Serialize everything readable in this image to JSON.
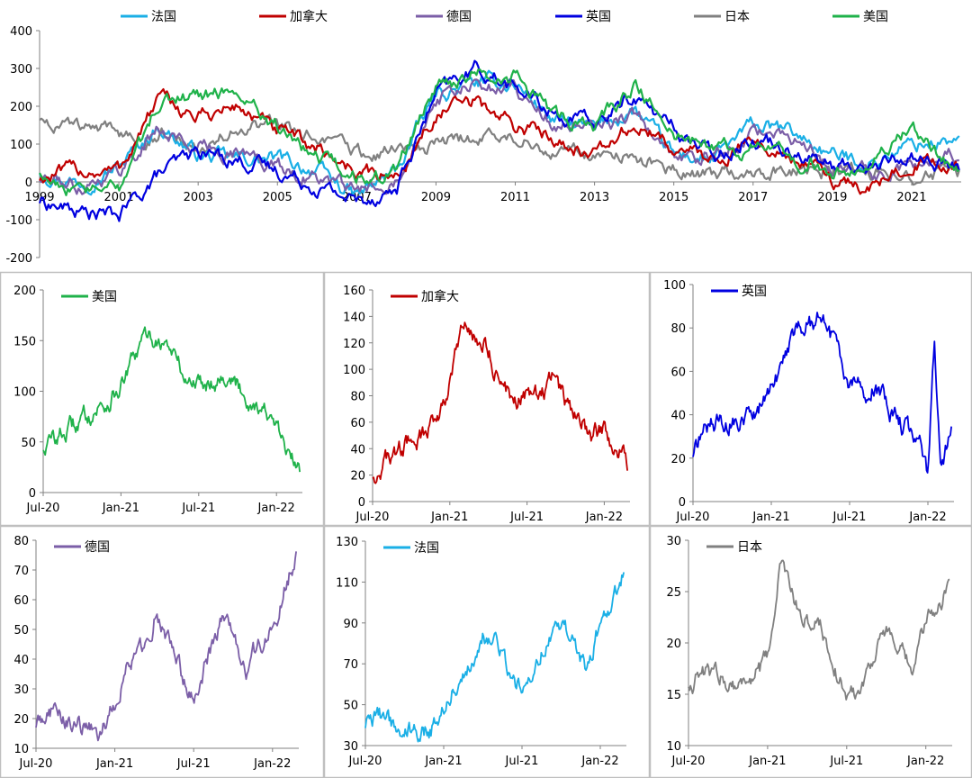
{
  "chart_data": [
    {
      "id": "main",
      "type": "line",
      "title": "",
      "xlabel": "",
      "ylabel": "",
      "xlim": [
        1999,
        2022.25
      ],
      "ylim": [
        -200,
        400
      ],
      "yticks": [
        -200,
        -100,
        0,
        100,
        200,
        300,
        400
      ],
      "xticks": [
        {
          "x": 1999,
          "label": "1999"
        },
        {
          "x": 2001,
          "label": "2001"
        },
        {
          "x": 2003,
          "label": "2003"
        },
        {
          "x": 2005,
          "label": "2005"
        },
        {
          "x": 2007,
          "label": "2007"
        },
        {
          "x": 2009,
          "label": "2009"
        },
        {
          "x": 2011,
          "label": "2011"
        },
        {
          "x": 2013,
          "label": "2013"
        },
        {
          "x": 2015,
          "label": "2015"
        },
        {
          "x": 2017,
          "label": "2017"
        },
        {
          "x": 2019,
          "label": "2019"
        },
        {
          "x": 2021,
          "label": "2021"
        }
      ],
      "legend": "top",
      "series": [
        {
          "name": "法国",
          "color": "#1aafe6",
          "x": [
            1999,
            2000,
            2001,
            2002,
            2003,
            2004,
            2005,
            2006,
            2007,
            2008,
            2009,
            2010,
            2011,
            2012,
            2013,
            2014,
            2015,
            2016,
            2017,
            2018,
            2019,
            2020,
            2021,
            2022.2
          ],
          "y": [
            30,
            0,
            40,
            150,
            70,
            60,
            60,
            30,
            -40,
            30,
            230,
            260,
            260,
            160,
            140,
            190,
            70,
            60,
            150,
            130,
            70,
            50,
            100,
            110
          ]
        },
        {
          "name": "加拿大",
          "color": "#c00000",
          "x": [
            1999,
            2000,
            2001,
            2002,
            2003,
            2004,
            2005,
            2006,
            2007,
            2008,
            2009,
            2010,
            2011,
            2012,
            2013,
            2014,
            2015,
            2016,
            2017,
            2018,
            2019,
            2020,
            2021,
            2022.2
          ],
          "y": [
            10,
            30,
            30,
            220,
            170,
            200,
            130,
            90,
            30,
            10,
            180,
            210,
            150,
            120,
            70,
            150,
            90,
            60,
            110,
            60,
            10,
            -20,
            60,
            30
          ]
        },
        {
          "name": "德国",
          "color": "#7b5ea7",
          "x": [
            1999,
            2000,
            2001,
            2002,
            2003,
            2004,
            2005,
            2006,
            2007,
            2008,
            2009,
            2010,
            2011,
            2012,
            2013,
            2014,
            2015,
            2016,
            2017,
            2018,
            2019,
            2020,
            2021,
            2022.2
          ],
          "y": [
            10,
            -10,
            30,
            140,
            90,
            80,
            40,
            10,
            -30,
            20,
            220,
            250,
            250,
            150,
            130,
            180,
            60,
            60,
            140,
            110,
            40,
            20,
            40,
            75
          ]
        },
        {
          "name": "英国",
          "color": "#0000e0",
          "x": [
            1999,
            2000,
            2001,
            2002,
            2003,
            2004,
            2005,
            2006,
            2007,
            2008,
            2009,
            2010,
            2011,
            2012,
            2013,
            2014,
            2015,
            2016,
            2017,
            2018,
            2019,
            2020,
            2021,
            2022.2
          ],
          "y": [
            -50,
            -80,
            -90,
            20,
            80,
            60,
            30,
            -10,
            -50,
            -20,
            230,
            300,
            250,
            180,
            150,
            230,
            140,
            70,
            120,
            90,
            40,
            40,
            70,
            30
          ]
        },
        {
          "name": "日本",
          "color": "#808080",
          "x": [
            1999,
            2000,
            2001,
            2002,
            2003,
            2004,
            2005,
            2006,
            2007,
            2008,
            2009,
            2010,
            2011,
            2012,
            2013,
            2014,
            2015,
            2016,
            2017,
            2018,
            2019,
            2020,
            2021,
            2022.2
          ],
          "y": [
            170,
            140,
            130,
            130,
            110,
            130,
            150,
            110,
            80,
            80,
            100,
            120,
            110,
            90,
            70,
            70,
            40,
            20,
            30,
            30,
            30,
            20,
            20,
            25
          ]
        },
        {
          "name": "美国",
          "color": "#1fb24a",
          "x": [
            1999,
            2000,
            2001,
            2002,
            2003,
            2004,
            2005,
            2006,
            2007,
            2008,
            2009,
            2010,
            2011,
            2012,
            2013,
            2014,
            2015,
            2016,
            2017,
            2018,
            2019,
            2020,
            2021,
            2022.2
          ],
          "y": [
            30,
            -30,
            -20,
            210,
            230,
            240,
            150,
            60,
            10,
            30,
            250,
            290,
            280,
            170,
            150,
            250,
            130,
            90,
            90,
            70,
            30,
            50,
            140,
            20
          ]
        }
      ]
    },
    {
      "id": "us",
      "type": "line",
      "title": "",
      "xlabel": "",
      "ylabel": "",
      "xlim": [
        0,
        20
      ],
      "ylim": [
        0,
        200
      ],
      "yticks": [
        0,
        50,
        100,
        150,
        200
      ],
      "xticks": [
        {
          "x": 0,
          "label": "Jul-20"
        },
        {
          "x": 6,
          "label": "Jan-21"
        },
        {
          "x": 12,
          "label": "Jul-21"
        },
        {
          "x": 18,
          "label": "Jan-22"
        }
      ],
      "legend": "top-left",
      "series": [
        {
          "name": "美国",
          "color": "#1fb24a",
          "x": [
            0,
            1,
            2,
            3,
            4,
            5,
            6,
            7,
            8,
            9,
            10,
            11,
            12,
            13,
            14,
            15,
            16,
            17,
            18,
            19,
            19.8
          ],
          "y": [
            45,
            55,
            62,
            72,
            82,
            90,
            105,
            130,
            155,
            150,
            140,
            110,
            110,
            110,
            118,
            105,
            90,
            85,
            60,
            35,
            20
          ]
        }
      ]
    },
    {
      "id": "ca",
      "type": "line",
      "title": "",
      "xlabel": "",
      "ylabel": "",
      "xlim": [
        0,
        20
      ],
      "ylim": [
        0,
        160
      ],
      "yticks": [
        0,
        20,
        40,
        60,
        80,
        100,
        120,
        140,
        160
      ],
      "xticks": [
        {
          "x": 0,
          "label": "Jul-20"
        },
        {
          "x": 6,
          "label": "Jan-21"
        },
        {
          "x": 12,
          "label": "Jul-21"
        },
        {
          "x": 18,
          "label": "Jan-22"
        }
      ],
      "legend": "top-left",
      "series": [
        {
          "name": "加拿大",
          "color": "#c00000",
          "x": [
            0,
            1,
            2,
            3,
            4,
            5,
            6,
            7,
            8,
            9,
            10,
            11,
            12,
            13,
            14,
            15,
            16,
            17,
            18,
            19,
            19.8
          ],
          "y": [
            20,
            30,
            38,
            45,
            50,
            65,
            90,
            130,
            125,
            115,
            90,
            75,
            80,
            80,
            95,
            75,
            60,
            50,
            55,
            40,
            30
          ]
        }
      ]
    },
    {
      "id": "uk",
      "type": "line",
      "title": "",
      "xlabel": "",
      "ylabel": "",
      "xlim": [
        0,
        20
      ],
      "ylim": [
        0,
        100
      ],
      "yticks": [
        0,
        20,
        40,
        60,
        80,
        100
      ],
      "xticks": [
        {
          "x": 0,
          "label": "Jul-20"
        },
        {
          "x": 6,
          "label": "Jan-21"
        },
        {
          "x": 12,
          "label": "Jul-21"
        },
        {
          "x": 18,
          "label": "Jan-22"
        }
      ],
      "legend": "top-left",
      "series": [
        {
          "name": "英国",
          "color": "#0000e0",
          "x": [
            0,
            1,
            2,
            3,
            4,
            5,
            6,
            7,
            8,
            9,
            10,
            11,
            12,
            13,
            14,
            15,
            16,
            17,
            17.5,
            18,
            18.5,
            19,
            19.8
          ],
          "y": [
            22,
            35,
            35,
            38,
            40,
            42,
            50,
            65,
            80,
            82,
            85,
            70,
            55,
            50,
            55,
            45,
            35,
            30,
            25,
            10,
            74,
            18,
            32
          ]
        }
      ]
    },
    {
      "id": "de",
      "type": "line",
      "title": "",
      "xlabel": "",
      "ylabel": "",
      "xlim": [
        0,
        20
      ],
      "ylim": [
        10,
        80
      ],
      "yticks": [
        10,
        20,
        30,
        40,
        50,
        60,
        70,
        80
      ],
      "xticks": [
        {
          "x": 0,
          "label": "Jul-20"
        },
        {
          "x": 6,
          "label": "Jan-21"
        },
        {
          "x": 12,
          "label": "Jul-21"
        },
        {
          "x": 18,
          "label": "Jan-22"
        }
      ],
      "legend": "top-left",
      "series": [
        {
          "name": "德国",
          "color": "#7b5ea7",
          "x": [
            0,
            1,
            2,
            3,
            4,
            5,
            6,
            7,
            8,
            9,
            10,
            11,
            12,
            13,
            14,
            15,
            16,
            17,
            18,
            19,
            19.8
          ],
          "y": [
            18,
            24,
            20,
            18,
            17,
            15,
            25,
            40,
            42,
            55,
            48,
            35,
            28,
            40,
            52,
            50,
            35,
            45,
            50,
            65,
            76
          ]
        }
      ]
    },
    {
      "id": "fr",
      "type": "line",
      "title": "",
      "xlabel": "",
      "ylabel": "",
      "xlim": [
        0,
        20
      ],
      "ylim": [
        30,
        130
      ],
      "yticks": [
        30,
        50,
        70,
        90,
        110,
        130
      ],
      "xticks": [
        {
          "x": 0,
          "label": "Jul-20"
        },
        {
          "x": 6,
          "label": "Jan-21"
        },
        {
          "x": 12,
          "label": "Jul-21"
        },
        {
          "x": 18,
          "label": "Jan-22"
        }
      ],
      "legend": "top-left",
      "series": [
        {
          "name": "法国",
          "color": "#1aafe6",
          "x": [
            0,
            1,
            2,
            3,
            4,
            5,
            6,
            7,
            8,
            9,
            10,
            11,
            12,
            13,
            14,
            15,
            16,
            17,
            18,
            19,
            19.8
          ],
          "y": [
            40,
            45,
            40,
            38,
            37,
            38,
            50,
            62,
            70,
            85,
            80,
            65,
            58,
            70,
            85,
            88,
            80,
            65,
            90,
            100,
            115
          ]
        }
      ]
    },
    {
      "id": "jp",
      "type": "line",
      "title": "",
      "xlabel": "",
      "ylabel": "",
      "xlim": [
        0,
        20
      ],
      "ylim": [
        10,
        30
      ],
      "yticks": [
        10,
        15,
        20,
        25,
        30
      ],
      "xticks": [
        {
          "x": 0,
          "label": "Jul-20"
        },
        {
          "x": 6,
          "label": "Jan-21"
        },
        {
          "x": 12,
          "label": "Jul-21"
        },
        {
          "x": 18,
          "label": "Jan-22"
        }
      ],
      "legend": "top-left",
      "series": [
        {
          "name": "日本",
          "color": "#808080",
          "x": [
            0,
            1,
            2,
            3,
            4,
            5,
            6,
            7,
            8,
            9,
            10,
            11,
            12,
            13,
            14,
            15,
            16,
            17,
            18,
            19,
            19.8
          ],
          "y": [
            16,
            17,
            17,
            16.5,
            16,
            17,
            18,
            28,
            24,
            22,
            22,
            18,
            15,
            15.5,
            19,
            21,
            19,
            17,
            22,
            24,
            26
          ]
        }
      ]
    }
  ]
}
